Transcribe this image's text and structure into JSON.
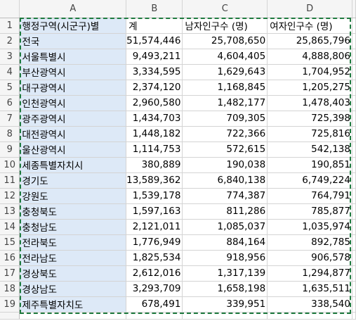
{
  "columns": [
    "A",
    "B",
    "C",
    "D"
  ],
  "rows": [
    {
      "num": "1",
      "a": "행정구역(시군구)별",
      "b": "계",
      "c": "남자인구수 (명)",
      "d": "여자인구수 (명)"
    },
    {
      "num": "2",
      "a": "전국",
      "b": "51,574,446",
      "c": "25,708,650",
      "d": "25,865,796"
    },
    {
      "num": "3",
      "a": "서울특별시",
      "b": "9,493,211",
      "c": "4,604,405",
      "d": "4,888,806"
    },
    {
      "num": "4",
      "a": "부산광역시",
      "b": "3,334,595",
      "c": "1,629,643",
      "d": "1,704,952"
    },
    {
      "num": "5",
      "a": "대구광역시",
      "b": "2,374,120",
      "c": "1,168,845",
      "d": "1,205,275"
    },
    {
      "num": "6",
      "a": "인천광역시",
      "b": "2,960,580",
      "c": "1,482,177",
      "d": "1,478,403"
    },
    {
      "num": "7",
      "a": "광주광역시",
      "b": "1,434,703",
      "c": "709,305",
      "d": "725,398"
    },
    {
      "num": "8",
      "a": "대전광역시",
      "b": "1,448,182",
      "c": "722,366",
      "d": "725,816"
    },
    {
      "num": "9",
      "a": "울산광역시",
      "b": "1,114,753",
      "c": "572,615",
      "d": "542,138"
    },
    {
      "num": "10",
      "a": "세종특별자치시",
      "b": "380,889",
      "c": "190,038",
      "d": "190,851"
    },
    {
      "num": "11",
      "a": "경기도",
      "b": "13,589,362",
      "c": "6,840,138",
      "d": "6,749,224"
    },
    {
      "num": "12",
      "a": "강원도",
      "b": "1,539,178",
      "c": "774,387",
      "d": "764,791"
    },
    {
      "num": "13",
      "a": "충청북도",
      "b": "1,597,163",
      "c": "811,286",
      "d": "785,877"
    },
    {
      "num": "14",
      "a": "충청남도",
      "b": "2,121,011",
      "c": "1,085,037",
      "d": "1,035,974"
    },
    {
      "num": "15",
      "a": "전라북도",
      "b": "1,776,949",
      "c": "884,164",
      "d": "892,785"
    },
    {
      "num": "16",
      "a": "전라남도",
      "b": "1,825,534",
      "c": "918,956",
      "d": "906,578"
    },
    {
      "num": "17",
      "a": "경상북도",
      "b": "2,612,016",
      "c": "1,317,139",
      "d": "1,294,877"
    },
    {
      "num": "18",
      "a": "경상남도",
      "b": "3,293,709",
      "c": "1,658,198",
      "d": "1,635,511"
    },
    {
      "num": "19",
      "a": "제주특별자치도",
      "b": "678,491",
      "c": "339,951",
      "d": "338,540"
    }
  ],
  "colors": {
    "selection": "#dde9f7",
    "marquee": "#1f7a3f",
    "header_bg": "#f5f5f5",
    "gridline": "#d4d4d4"
  }
}
